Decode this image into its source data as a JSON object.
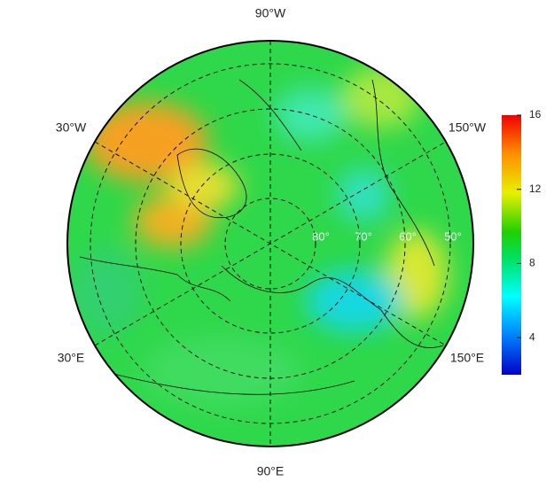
{
  "map": {
    "longitude_labels": [
      "90°W",
      "30°W",
      "150°W",
      "30°E",
      "150°E",
      "90°E"
    ],
    "latitude_labels": [
      "80°",
      "70°",
      "60°",
      "50°"
    ]
  },
  "colorbar": {
    "range": [
      2,
      16
    ],
    "ticks": [
      4,
      8,
      12,
      16
    ]
  }
}
